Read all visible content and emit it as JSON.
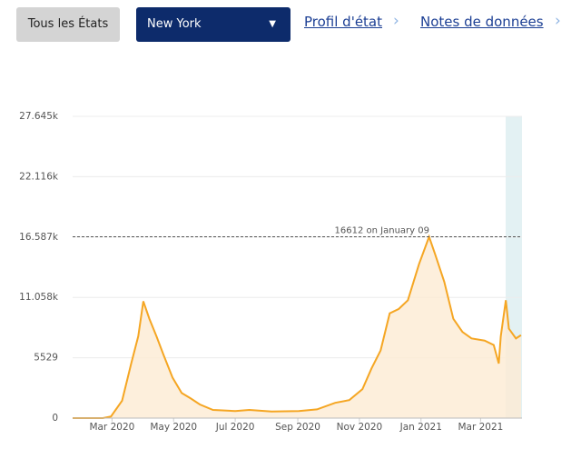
{
  "header": {
    "all_states": "Tous les États",
    "state_select": "New York",
    "link_profile": "Profil d'état",
    "link_notes": "Notes de données"
  },
  "chart_data": {
    "type": "line",
    "color": "#f5a623",
    "x": [
      0,
      30,
      38,
      49,
      58,
      65,
      70,
      76,
      83,
      90,
      99,
      108,
      117,
      126,
      139,
      161,
      175,
      197,
      224,
      242,
      260,
      274,
      287,
      296,
      305,
      314,
      323,
      332,
      343,
      353,
      359,
      368,
      377,
      386,
      395,
      408,
      417,
      422,
      424,
      429,
      432,
      439,
      444
    ],
    "values": [
      0,
      0,
      150,
      1600,
      5000,
      7500,
      10700,
      9100,
      7500,
      5800,
      3700,
      2300,
      1800,
      1250,
      750,
      650,
      750,
      600,
      650,
      800,
      1400,
      1650,
      2650,
      4550,
      6200,
      9600,
      10000,
      10800,
      14100,
      16612,
      15000,
      12500,
      9100,
      7900,
      7300,
      7100,
      6700,
      5000,
      7500,
      10800,
      8200,
      7300,
      7600
    ],
    "xlim": [
      0,
      445
    ],
    "xticks": [
      {
        "value": 39,
        "label": "Mar 2020"
      },
      {
        "value": 100,
        "label": "May 2020"
      },
      {
        "value": 161,
        "label": "Jul 2020"
      },
      {
        "value": 223,
        "label": "Sep 2020"
      },
      {
        "value": 284,
        "label": "Nov 2020"
      },
      {
        "value": 345,
        "label": "Jan 2021"
      },
      {
        "value": 404,
        "label": "Mar 2021"
      }
    ],
    "ylim": [
      0,
      27645
    ],
    "yticks": [
      0,
      5529,
      {
        "value": 11058,
        "label": "11.058k"
      },
      {
        "value": 16587,
        "label": "16.587k"
      },
      {
        "value": 22116,
        "label": "22.116k"
      },
      {
        "value": 27645,
        "label": "27.645k"
      }
    ],
    "grid": true,
    "reference_line": {
      "value": 16612,
      "label": "16612 on January 09"
    }
  }
}
